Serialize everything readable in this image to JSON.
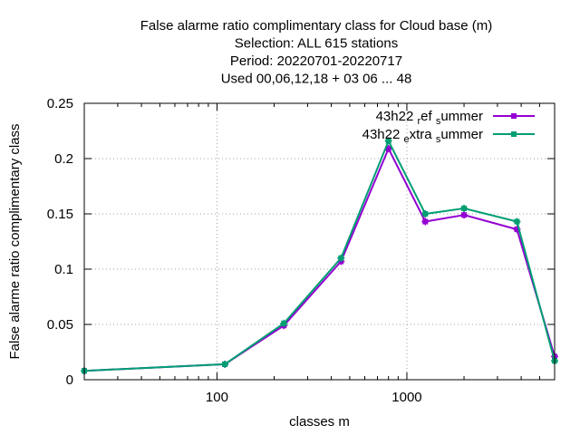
{
  "chart_data": {
    "type": "line",
    "title_lines": [
      "False alarme ratio complimentary class  for Cloud base (m)",
      "Selection: ALL    615 stations",
      "Period: 20220701-20220717",
      "Used  00,06,12,18  + 03 06 ... 48"
    ],
    "xlabel": "classes m",
    "ylabel": "False alarme ratio complimentary class",
    "x_scale": "log",
    "xlim": [
      20,
      6000
    ],
    "ylim": [
      0,
      0.25
    ],
    "x_ticks": [
      100,
      1000
    ],
    "x_tick_labels": [
      "100",
      "1000"
    ],
    "y_ticks": [
      0,
      0.05,
      0.1,
      0.15,
      0.2,
      0.25
    ],
    "y_tick_labels": [
      "0",
      "0.05",
      "0.1",
      "0.15",
      "0.2",
      "0.25"
    ],
    "grid": true,
    "legend_position": "top-right",
    "series": [
      {
        "legend_main": "43h22",
        "legend_parts": [
          [
            "r",
            "ef"
          ],
          [
            "s",
            "ummer"
          ]
        ],
        "color": "#9400d3",
        "x": [
          20,
          110,
          225,
          450,
          800,
          1250,
          2000,
          3800,
          6000
        ],
        "y": [
          0.008,
          0.014,
          0.049,
          0.107,
          0.209,
          0.143,
          0.149,
          0.136,
          0.021
        ]
      },
      {
        "legend_main": "43h22",
        "legend_parts": [
          [
            "e",
            "xtra"
          ],
          [
            "s",
            "ummer"
          ]
        ],
        "color": "#009e73",
        "x": [
          20,
          110,
          225,
          450,
          800,
          1250,
          2000,
          3800,
          6000
        ],
        "y": [
          0.008,
          0.014,
          0.051,
          0.11,
          0.216,
          0.15,
          0.155,
          0.143,
          0.017
        ]
      }
    ]
  }
}
